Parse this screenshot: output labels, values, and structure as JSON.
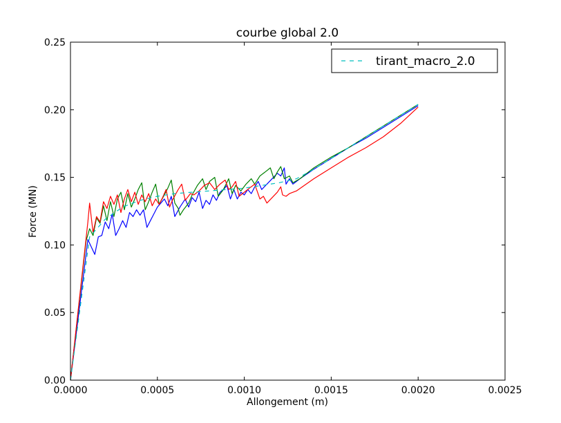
{
  "chart_data": {
    "type": "line",
    "title": "courbe global 2.0",
    "xlabel": "Allongement (m)",
    "ylabel": "Force (MN)",
    "xlim": [
      0,
      0.0025
    ],
    "ylim": [
      0,
      0.25
    ],
    "x_ticks": [
      "0.0000",
      "0.0005",
      "0.0010",
      "0.0015",
      "0.0020",
      "0.0025"
    ],
    "y_ticks": [
      "0.00",
      "0.05",
      "0.10",
      "0.15",
      "0.20",
      "0.25"
    ],
    "grid": false,
    "legend": {
      "placement": "top-right",
      "entries": [
        "tirant_macro_2.0"
      ]
    },
    "series": [
      {
        "color": "#0000ff",
        "style": "solid",
        "points": [
          [
            0,
            0
          ],
          [
            0.0001,
            0.104
          ],
          [
            0.00014,
            0.093
          ],
          [
            0.00016,
            0.106
          ],
          [
            0.00018,
            0.107
          ],
          [
            0.0002,
            0.117
          ],
          [
            0.00022,
            0.112
          ],
          [
            0.00024,
            0.123
          ],
          [
            0.00026,
            0.107
          ],
          [
            0.00028,
            0.112
          ],
          [
            0.0003,
            0.118
          ],
          [
            0.00032,
            0.113
          ],
          [
            0.00034,
            0.124
          ],
          [
            0.00036,
            0.121
          ],
          [
            0.00038,
            0.126
          ],
          [
            0.0004,
            0.122
          ],
          [
            0.00042,
            0.126
          ],
          [
            0.00044,
            0.113
          ],
          [
            0.00046,
            0.118
          ],
          [
            0.00048,
            0.123
          ],
          [
            0.0005,
            0.128
          ],
          [
            0.00052,
            0.131
          ],
          [
            0.00054,
            0.134
          ],
          [
            0.00056,
            0.129
          ],
          [
            0.00058,
            0.136
          ],
          [
            0.0006,
            0.121
          ],
          [
            0.00063,
            0.128
          ],
          [
            0.00066,
            0.134
          ],
          [
            0.00068,
            0.128
          ],
          [
            0.0007,
            0.135
          ],
          [
            0.00072,
            0.132
          ],
          [
            0.00074,
            0.139
          ],
          [
            0.00076,
            0.127
          ],
          [
            0.00078,
            0.133
          ],
          [
            0.0008,
            0.13
          ],
          [
            0.00082,
            0.137
          ],
          [
            0.00084,
            0.133
          ],
          [
            0.00086,
            0.139
          ],
          [
            0.00088,
            0.141
          ],
          [
            0.0009,
            0.144
          ],
          [
            0.00092,
            0.134
          ],
          [
            0.00094,
            0.141
          ],
          [
            0.00096,
            0.134
          ],
          [
            0.00098,
            0.139
          ],
          [
            0.001,
            0.137
          ],
          [
            0.00102,
            0.141
          ],
          [
            0.00104,
            0.138
          ],
          [
            0.00106,
            0.143
          ],
          [
            0.00108,
            0.147
          ],
          [
            0.0011,
            0.141
          ],
          [
            0.00113,
            0.145
          ],
          [
            0.00116,
            0.149
          ],
          [
            0.00119,
            0.153
          ],
          [
            0.00121,
            0.151
          ],
          [
            0.00123,
            0.157
          ],
          [
            0.00124,
            0.145
          ],
          [
            0.00126,
            0.149
          ],
          [
            0.00128,
            0.145
          ],
          [
            0.00132,
            0.149
          ],
          [
            0.0014,
            0.156
          ],
          [
            0.0015,
            0.164
          ],
          [
            0.0016,
            0.172
          ],
          [
            0.0017,
            0.179
          ],
          [
            0.0018,
            0.187
          ],
          [
            0.0019,
            0.195
          ],
          [
            0.002,
            0.203
          ]
        ]
      },
      {
        "color": "#008000",
        "style": "solid",
        "points": [
          [
            0,
            0
          ],
          [
            9e-05,
            0.103
          ],
          [
            0.00011,
            0.112
          ],
          [
            0.00013,
            0.107
          ],
          [
            0.00015,
            0.12
          ],
          [
            0.00017,
            0.116
          ],
          [
            0.00019,
            0.129
          ],
          [
            0.00021,
            0.118
          ],
          [
            0.00023,
            0.132
          ],
          [
            0.00025,
            0.121
          ],
          [
            0.00027,
            0.134
          ],
          [
            0.00029,
            0.139
          ],
          [
            0.00031,
            0.126
          ],
          [
            0.00033,
            0.138
          ],
          [
            0.00035,
            0.128
          ],
          [
            0.00037,
            0.134
          ],
          [
            0.00039,
            0.141
          ],
          [
            0.00041,
            0.146
          ],
          [
            0.00043,
            0.126
          ],
          [
            0.00045,
            0.132
          ],
          [
            0.00047,
            0.139
          ],
          [
            0.00049,
            0.145
          ],
          [
            0.00051,
            0.13
          ],
          [
            0.00054,
            0.137
          ],
          [
            0.00056,
            0.142
          ],
          [
            0.00058,
            0.148
          ],
          [
            0.0006,
            0.131
          ],
          [
            0.00062,
            0.127
          ],
          [
            0.00063,
            0.122
          ],
          [
            0.00065,
            0.126
          ],
          [
            0.00068,
            0.131
          ],
          [
            0.0007,
            0.137
          ],
          [
            0.00073,
            0.144
          ],
          [
            0.00076,
            0.149
          ],
          [
            0.00078,
            0.141
          ],
          [
            0.0008,
            0.147
          ],
          [
            0.00083,
            0.15
          ],
          [
            0.00085,
            0.136
          ],
          [
            0.00088,
            0.141
          ],
          [
            0.00091,
            0.149
          ],
          [
            0.00093,
            0.138
          ],
          [
            0.00095,
            0.144
          ],
          [
            0.00098,
            0.14
          ],
          [
            0.00101,
            0.145
          ],
          [
            0.00104,
            0.149
          ],
          [
            0.00106,
            0.145
          ],
          [
            0.00109,
            0.151
          ],
          [
            0.00112,
            0.154
          ],
          [
            0.00115,
            0.157
          ],
          [
            0.00117,
            0.149
          ],
          [
            0.00119,
            0.154
          ],
          [
            0.00121,
            0.158
          ],
          [
            0.00123,
            0.149
          ],
          [
            0.00126,
            0.151
          ],
          [
            0.00128,
            0.146
          ],
          [
            0.00132,
            0.149
          ],
          [
            0.0014,
            0.157
          ],
          [
            0.0015,
            0.165
          ],
          [
            0.0016,
            0.172
          ],
          [
            0.0017,
            0.18
          ],
          [
            0.0018,
            0.188
          ],
          [
            0.0019,
            0.196
          ],
          [
            0.002,
            0.204
          ]
        ]
      },
      {
        "color": "#ff0000",
        "style": "solid",
        "points": [
          [
            0,
            0
          ],
          [
            0.0001,
            0.117
          ],
          [
            0.00011,
            0.131
          ],
          [
            0.00013,
            0.109
          ],
          [
            0.00015,
            0.121
          ],
          [
            0.00017,
            0.117
          ],
          [
            0.00019,
            0.132
          ],
          [
            0.00021,
            0.127
          ],
          [
            0.00023,
            0.136
          ],
          [
            0.00025,
            0.13
          ],
          [
            0.00027,
            0.137
          ],
          [
            0.00029,
            0.124
          ],
          [
            0.00031,
            0.134
          ],
          [
            0.00033,
            0.141
          ],
          [
            0.00035,
            0.132
          ],
          [
            0.00037,
            0.139
          ],
          [
            0.00039,
            0.13
          ],
          [
            0.00041,
            0.137
          ],
          [
            0.00043,
            0.132
          ],
          [
            0.00045,
            0.138
          ],
          [
            0.00047,
            0.129
          ],
          [
            0.00049,
            0.134
          ],
          [
            0.00051,
            0.13
          ],
          [
            0.00053,
            0.135
          ],
          [
            0.00055,
            0.141
          ],
          [
            0.00057,
            0.128
          ],
          [
            0.00059,
            0.134
          ],
          [
            0.00062,
            0.141
          ],
          [
            0.00064,
            0.145
          ],
          [
            0.00066,
            0.133
          ],
          [
            0.00069,
            0.138
          ],
          [
            0.00071,
            0.137
          ],
          [
            0.00074,
            0.14
          ],
          [
            0.00077,
            0.144
          ],
          [
            0.0008,
            0.146
          ],
          [
            0.00083,
            0.141
          ],
          [
            0.00086,
            0.145
          ],
          [
            0.00089,
            0.148
          ],
          [
            0.00091,
            0.141
          ],
          [
            0.00093,
            0.143
          ],
          [
            0.00095,
            0.147
          ],
          [
            0.00097,
            0.136
          ],
          [
            0.001,
            0.139
          ],
          [
            0.00103,
            0.142
          ],
          [
            0.00106,
            0.145
          ],
          [
            0.00109,
            0.134
          ],
          [
            0.00111,
            0.136
          ],
          [
            0.00113,
            0.131
          ],
          [
            0.00116,
            0.135
          ],
          [
            0.00119,
            0.139
          ],
          [
            0.00121,
            0.143
          ],
          [
            0.00122,
            0.137
          ],
          [
            0.00124,
            0.136
          ],
          [
            0.00126,
            0.138
          ],
          [
            0.0013,
            0.14
          ],
          [
            0.0014,
            0.149
          ],
          [
            0.0015,
            0.157
          ],
          [
            0.0016,
            0.165
          ],
          [
            0.0017,
            0.172
          ],
          [
            0.0018,
            0.18
          ],
          [
            0.0019,
            0.19
          ],
          [
            0.002,
            0.202
          ]
        ]
      },
      {
        "name": "tirant_macro_2.0",
        "color": "#00bfbf",
        "style": "dashed",
        "points": [
          [
            0,
            0
          ],
          [
            0.00011,
            0.106
          ],
          [
            0.0002,
            0.119
          ],
          [
            0.0003,
            0.128
          ],
          [
            0.0004,
            0.133
          ],
          [
            0.0005,
            0.136
          ],
          [
            0.0006,
            0.138
          ],
          [
            0.0007,
            0.139
          ],
          [
            0.0008,
            0.14
          ],
          [
            0.0009,
            0.141
          ],
          [
            0.001,
            0.142
          ],
          [
            0.0011,
            0.144
          ],
          [
            0.0012,
            0.146
          ],
          [
            0.0013,
            0.149
          ],
          [
            0.0014,
            0.156
          ],
          [
            0.0015,
            0.164
          ],
          [
            0.0016,
            0.172
          ],
          [
            0.0017,
            0.18
          ],
          [
            0.0018,
            0.188
          ],
          [
            0.0019,
            0.196
          ],
          [
            0.002,
            0.204
          ]
        ]
      }
    ]
  }
}
